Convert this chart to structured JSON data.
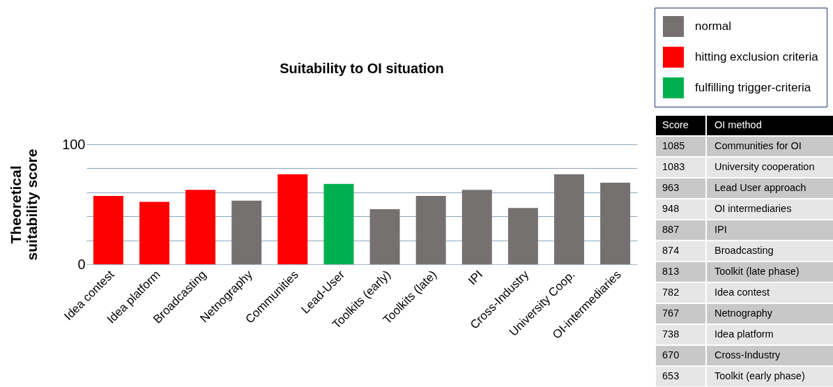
{
  "chart_data": [
    {
      "type": "bar",
      "title": "Suitability to OI situation",
      "ylabel": "Theoretical suitability score",
      "categories": [
        "Idea contest",
        "Idea platform",
        "Broadcasting",
        "Netnography",
        "Communities",
        "Lead-User",
        "Toolkits (early)",
        "Toolkits (late)",
        "IPI",
        "Cross-Industry",
        "University Coop.",
        "OI-intermediaries"
      ],
      "series": [
        {
          "name": "normal",
          "color": "#767171",
          "values": [
            null,
            null,
            null,
            53,
            null,
            null,
            46,
            57,
            62,
            47,
            75,
            68
          ]
        },
        {
          "name": "hitting exclusion criteria",
          "color": "#ff0000",
          "values": [
            57,
            52,
            62,
            null,
            75,
            null,
            null,
            null,
            null,
            null,
            null,
            null
          ]
        },
        {
          "name": "fulfilling trigger-criteria",
          "color": "#00b050",
          "values": [
            null,
            null,
            null,
            null,
            null,
            67,
            null,
            null,
            null,
            null,
            null,
            null
          ]
        }
      ],
      "ylim": [
        0,
        100
      ],
      "yticks": [
        0,
        {
          "value": 20,
          "label": null
        },
        {
          "value": 40,
          "label": null
        },
        {
          "value": 60,
          "label": null
        },
        {
          "value": 80,
          "label": null
        },
        100
      ],
      "grid": "y",
      "legend": "top right"
    },
    {
      "type": "other",
      "annotations": [
        "Score",
        "OI method"
      ],
      "categories": [
        "Communities for OI",
        "University cooperation",
        "Lead User approach",
        "OI intermediaries",
        "IPI",
        "Broadcasting",
        "Toolkit (late phase)",
        "Idea contest",
        "Netnography",
        "Idea platform",
        "Cross-Industry",
        "Toolkit (early phase)"
      ],
      "values": [
        1085,
        1083,
        963,
        948,
        887,
        874,
        813,
        782,
        767,
        738,
        670,
        653
      ],
      "data_labels": true
    }
  ]
}
